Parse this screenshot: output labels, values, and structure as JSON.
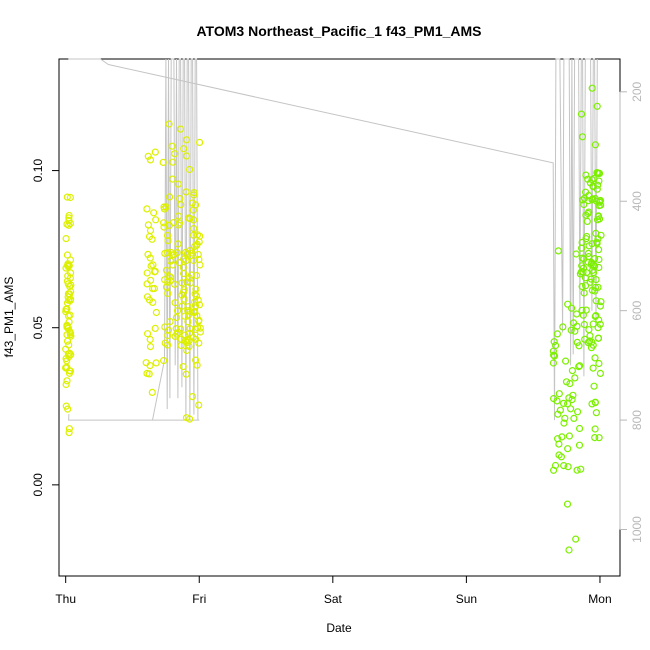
{
  "chart_data": {
    "type": "scatter",
    "title": "ATOM3 Northeast_Pacific_1 f43_PM1_AMS",
    "xlabel": "Date",
    "ylabel": "f43_PM1_AMS",
    "x_tick_labels": [
      "Thu",
      "Fri",
      "Sat",
      "Sun",
      "Mon"
    ],
    "x_tick_values": [
      0,
      1,
      2,
      3,
      4
    ],
    "xlim": [
      -0.05,
      4.15
    ],
    "ylim": [
      -0.029,
      0.1355
    ],
    "y_ticks": [
      0.0,
      0.05,
      0.1
    ],
    "y_tick_labels": [
      "0.00",
      "0.05",
      "0.10"
    ],
    "right_axis": {
      "ticks": [
        200,
        400,
        600,
        800,
        1000
      ],
      "lim": [
        1085,
        140
      ],
      "color": "#b8b8b8"
    },
    "line_color": "#c4c4c4",
    "color_early": "#ddf000",
    "color_late": "#7cf000",
    "altitude_trace": [
      [
        0.02,
        140
      ],
      [
        0.025,
        140
      ],
      [
        0.26,
        140
      ],
      [
        0.32,
        150
      ],
      [
        3.65,
        330
      ],
      [
        3.66,
        800
      ],
      [
        3.67,
        140
      ],
      [
        3.7,
        140
      ],
      [
        3.72,
        640
      ],
      [
        3.73,
        140
      ],
      [
        3.77,
        140
      ],
      [
        3.78,
        700
      ],
      [
        3.79,
        140
      ],
      [
        3.8,
        680
      ],
      [
        3.81,
        140
      ],
      [
        3.84,
        140
      ],
      [
        3.85,
        600
      ],
      [
        3.86,
        140
      ],
      [
        3.87,
        140
      ],
      [
        3.88,
        720
      ],
      [
        3.89,
        140
      ],
      [
        3.93,
        140
      ],
      [
        3.94,
        600
      ],
      [
        3.95,
        140
      ],
      [
        3.96,
        140
      ],
      [
        3.97,
        620
      ],
      [
        3.98,
        140
      ]
    ],
    "altitude_bottom": [
      [
        0.02,
        790
      ],
      [
        0.024,
        790
      ],
      [
        0.022,
        800
      ],
      [
        0.08,
        800
      ],
      [
        0.6,
        800
      ],
      [
        0.95,
        800
      ],
      [
        1.0,
        800
      ]
    ],
    "altitude_fri": [
      [
        0.65,
        800
      ],
      [
        0.74,
        690
      ],
      [
        0.75,
        140
      ],
      [
        0.76,
        780
      ],
      [
        0.77,
        140
      ],
      [
        0.78,
        760
      ],
      [
        0.79,
        140
      ],
      [
        0.81,
        140
      ],
      [
        0.82,
        700
      ],
      [
        0.83,
        140
      ],
      [
        0.84,
        760
      ],
      [
        0.85,
        140
      ],
      [
        0.86,
        140
      ],
      [
        0.87,
        740
      ],
      [
        0.88,
        140
      ],
      [
        0.89,
        140
      ],
      [
        0.9,
        800
      ],
      [
        0.91,
        140
      ],
      [
        0.92,
        140
      ],
      [
        0.93,
        800
      ],
      [
        0.94,
        140
      ],
      [
        0.95,
        140
      ],
      [
        0.96,
        790
      ],
      [
        0.97,
        140
      ],
      [
        0.98,
        140
      ],
      [
        0.99,
        800
      ]
    ]
  }
}
